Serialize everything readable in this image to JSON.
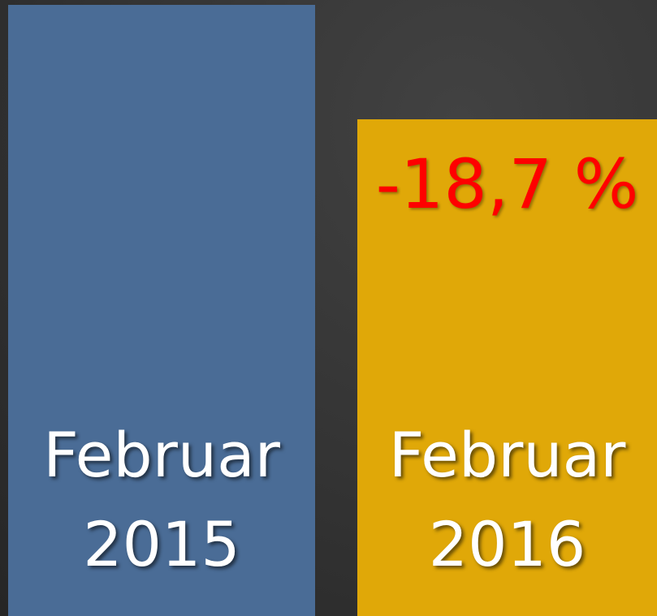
{
  "chart_data": {
    "type": "bar",
    "categories": [
      "Februar 2015",
      "Februar 2016"
    ],
    "values": [
      100,
      81.3
    ],
    "colors": [
      "#4a6c96",
      "#e0a808"
    ],
    "ylim": [
      0,
      100
    ],
    "annotation": "-18,7 %"
  }
}
